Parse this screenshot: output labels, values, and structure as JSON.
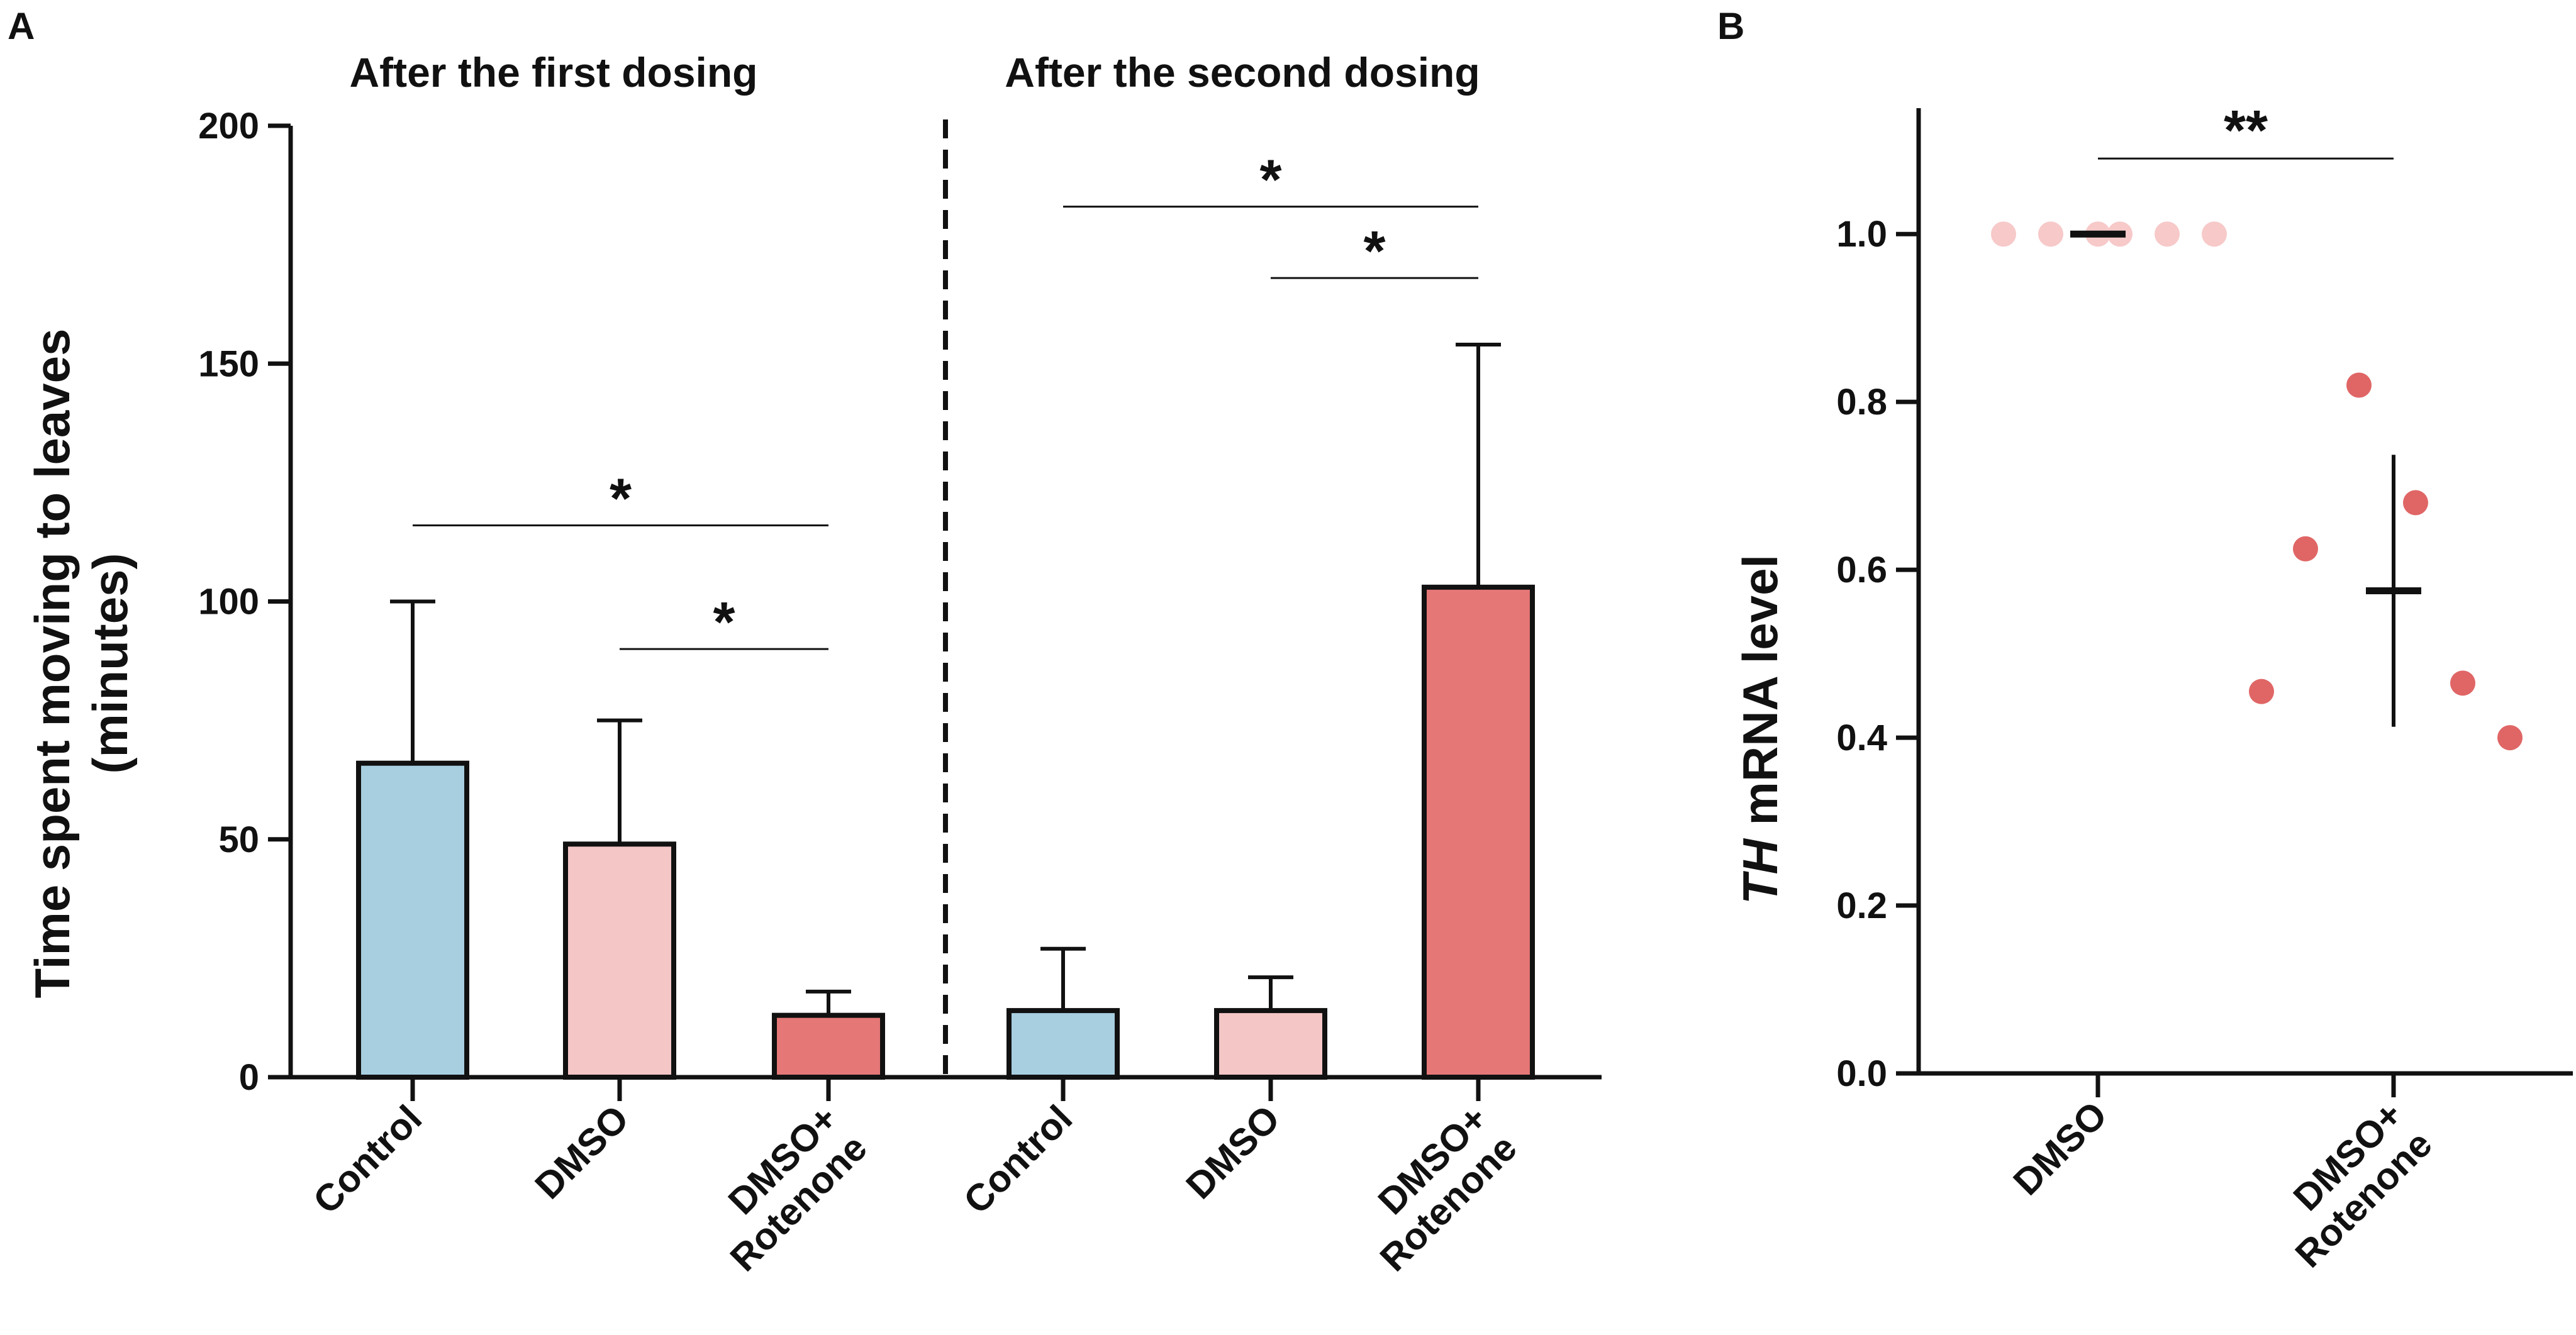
{
  "panels": [
    {
      "label": "A",
      "type": "bar",
      "ylabel_lines": [
        "Time spent moving to leaves",
        "(minutes)"
      ],
      "ylim": [
        0,
        200
      ],
      "yticks": [
        "0",
        "50",
        "100",
        "150",
        "200"
      ],
      "groups": [
        {
          "title": "After the first dosing",
          "bars": [
            {
              "category": [
                "Control"
              ],
              "value": 66,
              "error": 100,
              "color": "#a8cfe0"
            },
            {
              "category": [
                "DMSO"
              ],
              "value": 49,
              "error": 75,
              "color": "#f4c6c6"
            },
            {
              "category": [
                "DMSO+",
                "Rotenone"
              ],
              "value": 13,
              "error": 18,
              "color": "#e57777"
            }
          ],
          "significance": [
            {
              "from": 0,
              "to": 2,
              "y": 116,
              "label": "*"
            },
            {
              "from": 1,
              "to": 2,
              "y": 90,
              "label": "*"
            }
          ]
        },
        {
          "title": "After the second dosing",
          "bars": [
            {
              "category": [
                "Control"
              ],
              "value": 14,
              "error": 27,
              "color": "#a8cfe0"
            },
            {
              "category": [
                "DMSO"
              ],
              "value": 14,
              "error": 21,
              "color": "#f4c6c6"
            },
            {
              "category": [
                "DMSO+",
                "Rotenone"
              ],
              "value": 103,
              "error": 154,
              "color": "#e57777"
            }
          ],
          "significance": [
            {
              "from": 0,
              "to": 2,
              "y": 183,
              "label": "*"
            },
            {
              "from": 1,
              "to": 2,
              "y": 168,
              "label": "*"
            }
          ]
        }
      ]
    },
    {
      "label": "B",
      "type": "scatter",
      "ylabel_italic": "TH",
      "ylabel_rest": " mRNA level",
      "ylim": [
        0.0,
        1.15
      ],
      "yticks": [
        "0.0",
        "0.2",
        "0.4",
        "0.6",
        "0.8",
        "1.0"
      ],
      "groups": [
        {
          "category": [
            "DMSO"
          ],
          "color": "#f7c9c9",
          "points": [
            1.0,
            1.0,
            1.0,
            1.0,
            1.0,
            1.0
          ],
          "mean": 1.0,
          "sd": 0.0
        },
        {
          "category": [
            "DMSO+",
            "Rotenone"
          ],
          "color": "#e06666",
          "points": [
            0.455,
            0.625,
            0.82,
            0.68,
            0.465,
            0.4
          ],
          "mean": 0.575,
          "sd": 0.162
        }
      ],
      "significance": [
        {
          "from": 0,
          "to": 1,
          "y": 1.09,
          "label": "**"
        }
      ]
    }
  ]
}
